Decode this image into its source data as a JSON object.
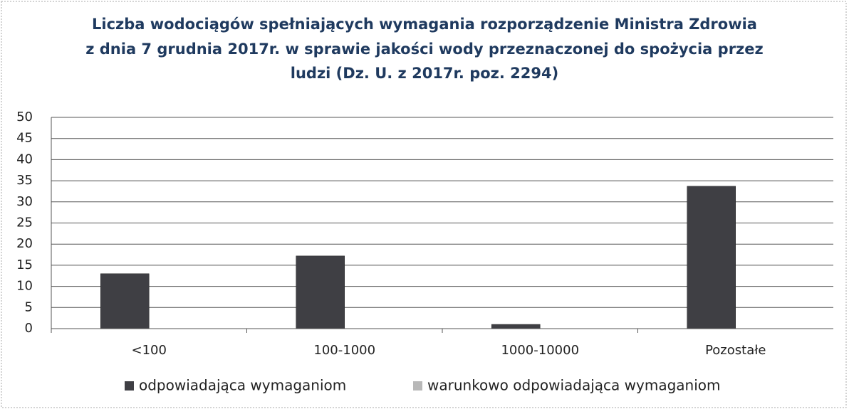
{
  "chart_data": {
    "type": "bar",
    "title": [
      "Liczba wodociągów spełniających wymagania rozporządzenie Ministra Zdrowia",
      "z dnia 7 grudnia 2017r. w sprawie jakości wody przeznaczonej do spożycia przez",
      "ludzi (Dz. U. z 2017r. poz. 2294)"
    ],
    "categories": [
      "<100",
      "100-1000",
      "1000-10000",
      "Pozostałe"
    ],
    "series": [
      {
        "name": "odpowiadająca wymaganiom",
        "color": "#3f3f44",
        "values": [
          13,
          17.2,
          1,
          33.7
        ]
      },
      {
        "name": "warunkowo odpowiadająca wymaganiom",
        "color": "#b8b8b8",
        "values": [
          0,
          0,
          0,
          0
        ]
      }
    ],
    "ylim": [
      0,
      50
    ],
    "yticks": [
      0,
      5,
      10,
      15,
      20,
      25,
      30,
      35,
      40,
      45,
      50
    ],
    "grid": true,
    "legend": "bottom"
  }
}
